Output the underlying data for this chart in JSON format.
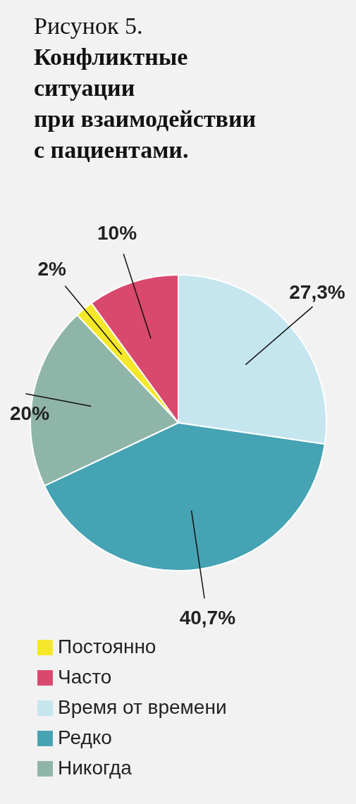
{
  "chart_data": {
    "type": "pie",
    "title": "Рисунок 5.",
    "subtitle": "Конфликтные\nситуации\nпри взаимодействии\nс пациентами.",
    "categories": [
      "Постоянно",
      "Часто",
      "Время от времени",
      "Редко",
      "Никогда"
    ],
    "values": [
      2,
      10,
      27.3,
      40.7,
      20
    ],
    "colors": [
      "#f5e829",
      "#d9496e",
      "#c5e6ef",
      "#45a3b3",
      "#8fb5a8"
    ],
    "value_labels": [
      "2%",
      "10%",
      "27,3%",
      "40,7%",
      "20%"
    ],
    "legend": "bottom left"
  }
}
